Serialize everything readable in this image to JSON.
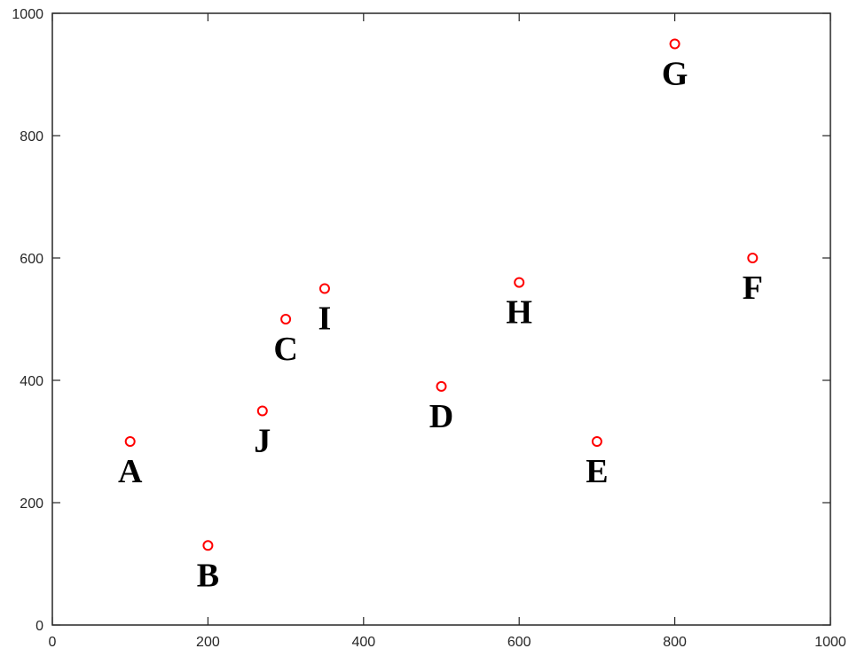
{
  "chart_data": {
    "type": "scatter",
    "title": "",
    "xlabel": "",
    "ylabel": "",
    "xlim": [
      0,
      1000
    ],
    "ylim": [
      0,
      1000
    ],
    "xticks": [
      0,
      200,
      400,
      600,
      800,
      1000
    ],
    "yticks": [
      0,
      200,
      400,
      600,
      800,
      1000
    ],
    "grid": false,
    "marker": "circle",
    "marker_color": "#ff0000",
    "points": [
      {
        "label": "A",
        "x": 100,
        "y": 300
      },
      {
        "label": "B",
        "x": 200,
        "y": 130
      },
      {
        "label": "C",
        "x": 300,
        "y": 500
      },
      {
        "label": "D",
        "x": 500,
        "y": 390
      },
      {
        "label": "E",
        "x": 700,
        "y": 300
      },
      {
        "label": "F",
        "x": 900,
        "y": 600
      },
      {
        "label": "G",
        "x": 800,
        "y": 950
      },
      {
        "label": "H",
        "x": 600,
        "y": 560
      },
      {
        "label": "I",
        "x": 350,
        "y": 550
      },
      {
        "label": "J",
        "x": 270,
        "y": 350
      }
    ]
  }
}
